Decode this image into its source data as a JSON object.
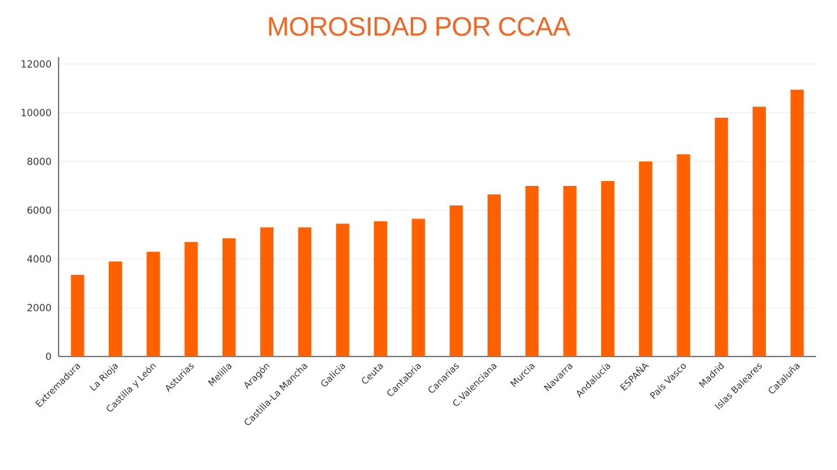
{
  "colors": {
    "bar": "#ff6000",
    "title": "#f26522",
    "axis": "#555555",
    "grid": "#e8e8e8",
    "text": "#333333"
  },
  "chart_data": {
    "type": "bar",
    "title": "MOROSIDAD POR CCAA",
    "xlabel": "",
    "ylabel": "",
    "ylim": [
      0,
      12000
    ],
    "yticks": [
      0,
      2000,
      4000,
      6000,
      8000,
      10000,
      12000
    ],
    "grid": true,
    "categories": [
      "Extremadura",
      "La Rioja",
      "Castilla y León",
      "Asturias",
      "Melilla",
      "Aragón",
      "Castilla-La Mancha",
      "Galicia",
      "Ceuta",
      "Cantabria",
      "Canarias",
      "C.Valenciana",
      "Murcia",
      "Navarra",
      "Andalucía",
      "ESPAÑA",
      "País Vasco",
      "Madrid",
      "Islas Baleares",
      "Cataluña"
    ],
    "values": [
      3350,
      3900,
      4300,
      4700,
      4850,
      5300,
      5300,
      5450,
      5550,
      5650,
      6200,
      6650,
      7000,
      7000,
      7200,
      8000,
      8300,
      9800,
      10250,
      10950
    ]
  }
}
